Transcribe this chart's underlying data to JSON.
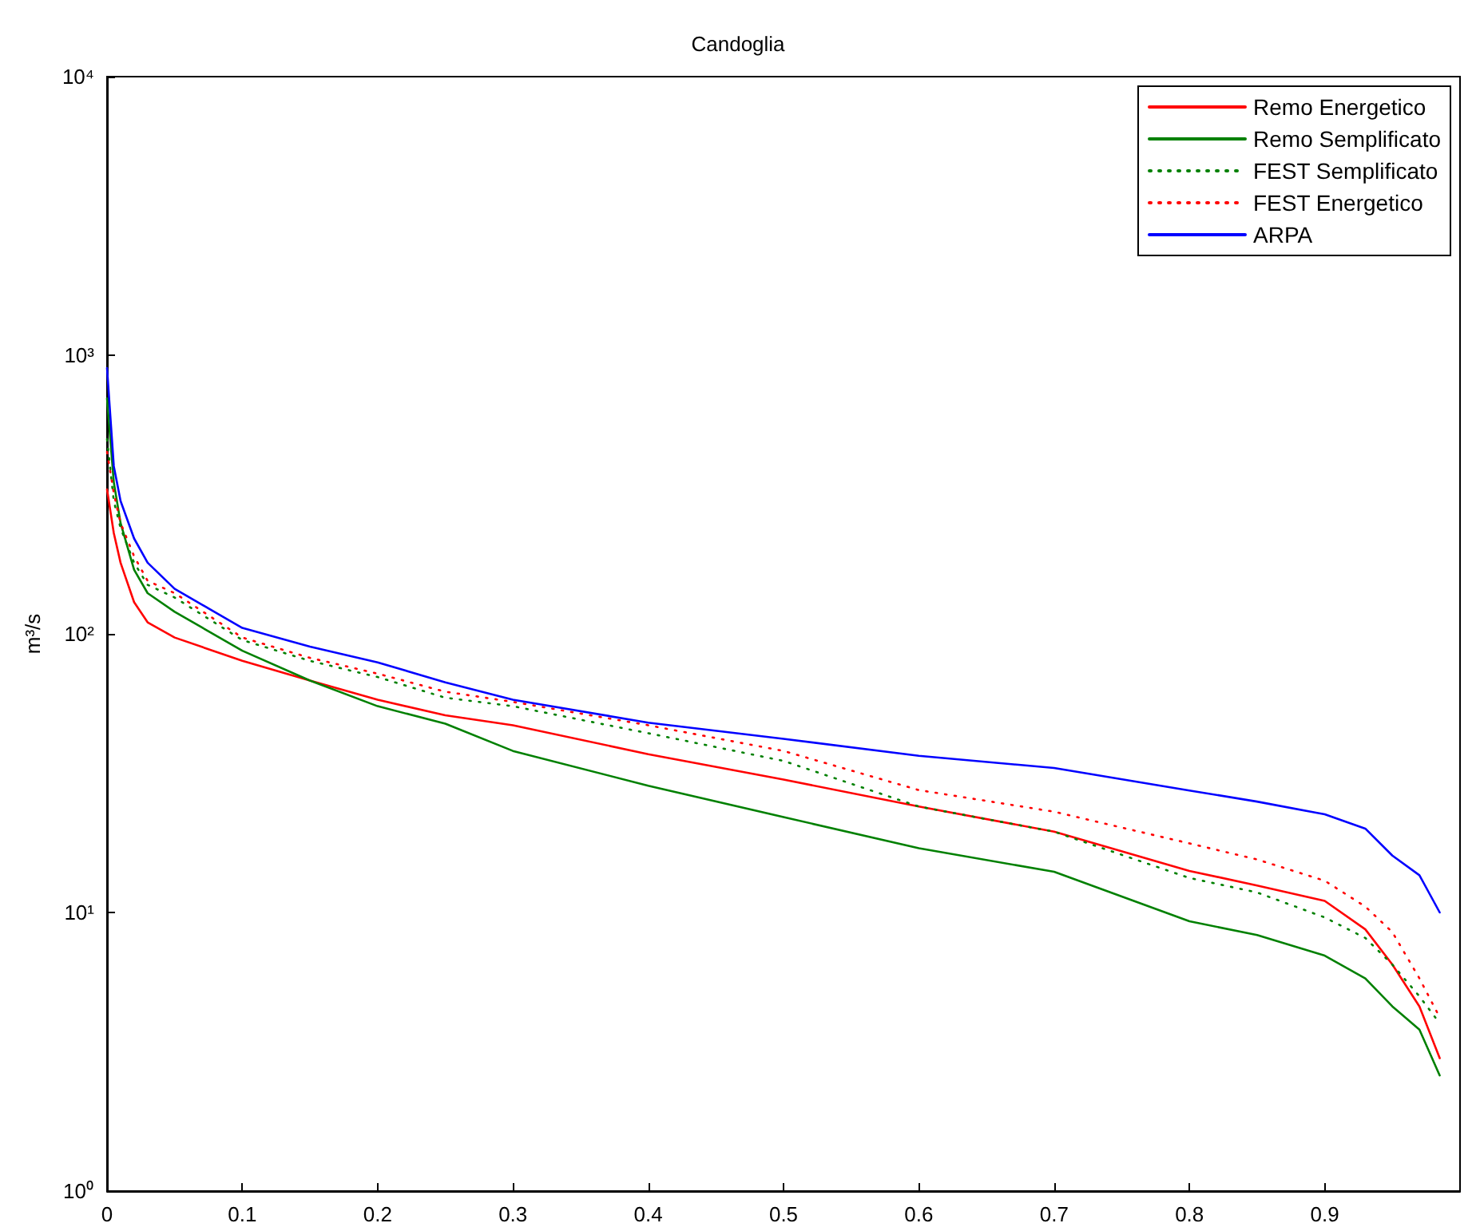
{
  "chart_data": {
    "type": "line",
    "title": "Candoglia",
    "ylabel": "m³/s",
    "log": "y",
    "grid": false,
    "legend": "top right",
    "marker": "none",
    "xlim": [
      0,
      1
    ],
    "xticks": [
      0,
      0.1,
      0.2,
      0.3,
      0.4,
      0.5,
      0.6,
      0.7,
      0.8,
      0.9
    ],
    "ylim": [
      1,
      10000
    ],
    "yticks": [
      {
        "value": 1,
        "label": "10⁰"
      },
      {
        "value": 10,
        "label": "10¹"
      },
      {
        "value": 100,
        "label": "10²"
      },
      {
        "value": 1000,
        "label": "10³"
      },
      {
        "value": 10000,
        "label": "10⁴"
      }
    ],
    "x": [
      0,
      0.005,
      0.01,
      0.02,
      0.03,
      0.05,
      0.1,
      0.15,
      0.2,
      0.25,
      0.3,
      0.4,
      0.5,
      0.6,
      0.7,
      0.8,
      0.85,
      0.9,
      0.93,
      0.95,
      0.97,
      0.985
    ],
    "series": [
      {
        "name": "Remo Energetico",
        "color": "#ff0000",
        "line_style": "solid",
        "values": [
          330,
          230,
          180,
          130,
          110,
          97,
          80,
          68,
          58,
          51,
          47,
          37,
          30,
          24,
          19.5,
          14.1,
          12.5,
          11,
          8.7,
          6.5,
          4.6,
          3
        ]
      },
      {
        "name": "Remo Semplificato",
        "color": "#008000",
        "line_style": "solid",
        "values": [
          700,
          350,
          250,
          170,
          140,
          120,
          87,
          68,
          55,
          47.6,
          38,
          28.5,
          22,
          17,
          14,
          9.3,
          8.3,
          7,
          5.8,
          4.6,
          3.8,
          2.6
        ]
      },
      {
        "name": "FEST Semplificato",
        "color": "#008000",
        "line_style": "dotted",
        "values": [
          500,
          300,
          240,
          180,
          150,
          135,
          95,
          80,
          70,
          59,
          55,
          44,
          35,
          24,
          19.5,
          13.3,
          11.8,
          9.6,
          8.1,
          6.5,
          5,
          4
        ]
      },
      {
        "name": "FEST Energetico",
        "color": "#ff0000",
        "line_style": "dotted",
        "values": [
          450,
          320,
          250,
          190,
          155,
          140,
          97,
          82,
          72,
          62,
          57,
          47,
          38,
          27.5,
          23,
          17.7,
          15.5,
          13,
          10.5,
          8.5,
          5.8,
          4.2
        ]
      },
      {
        "name": "ARPA",
        "color": "#0000ff",
        "line_style": "solid",
        "values": [
          900,
          400,
          300,
          220,
          180,
          145,
          105,
          90,
          79,
          67,
          58,
          48,
          42,
          36.5,
          33,
          27.4,
          25,
          22.5,
          20,
          16,
          13.6,
          10
        ]
      }
    ]
  }
}
